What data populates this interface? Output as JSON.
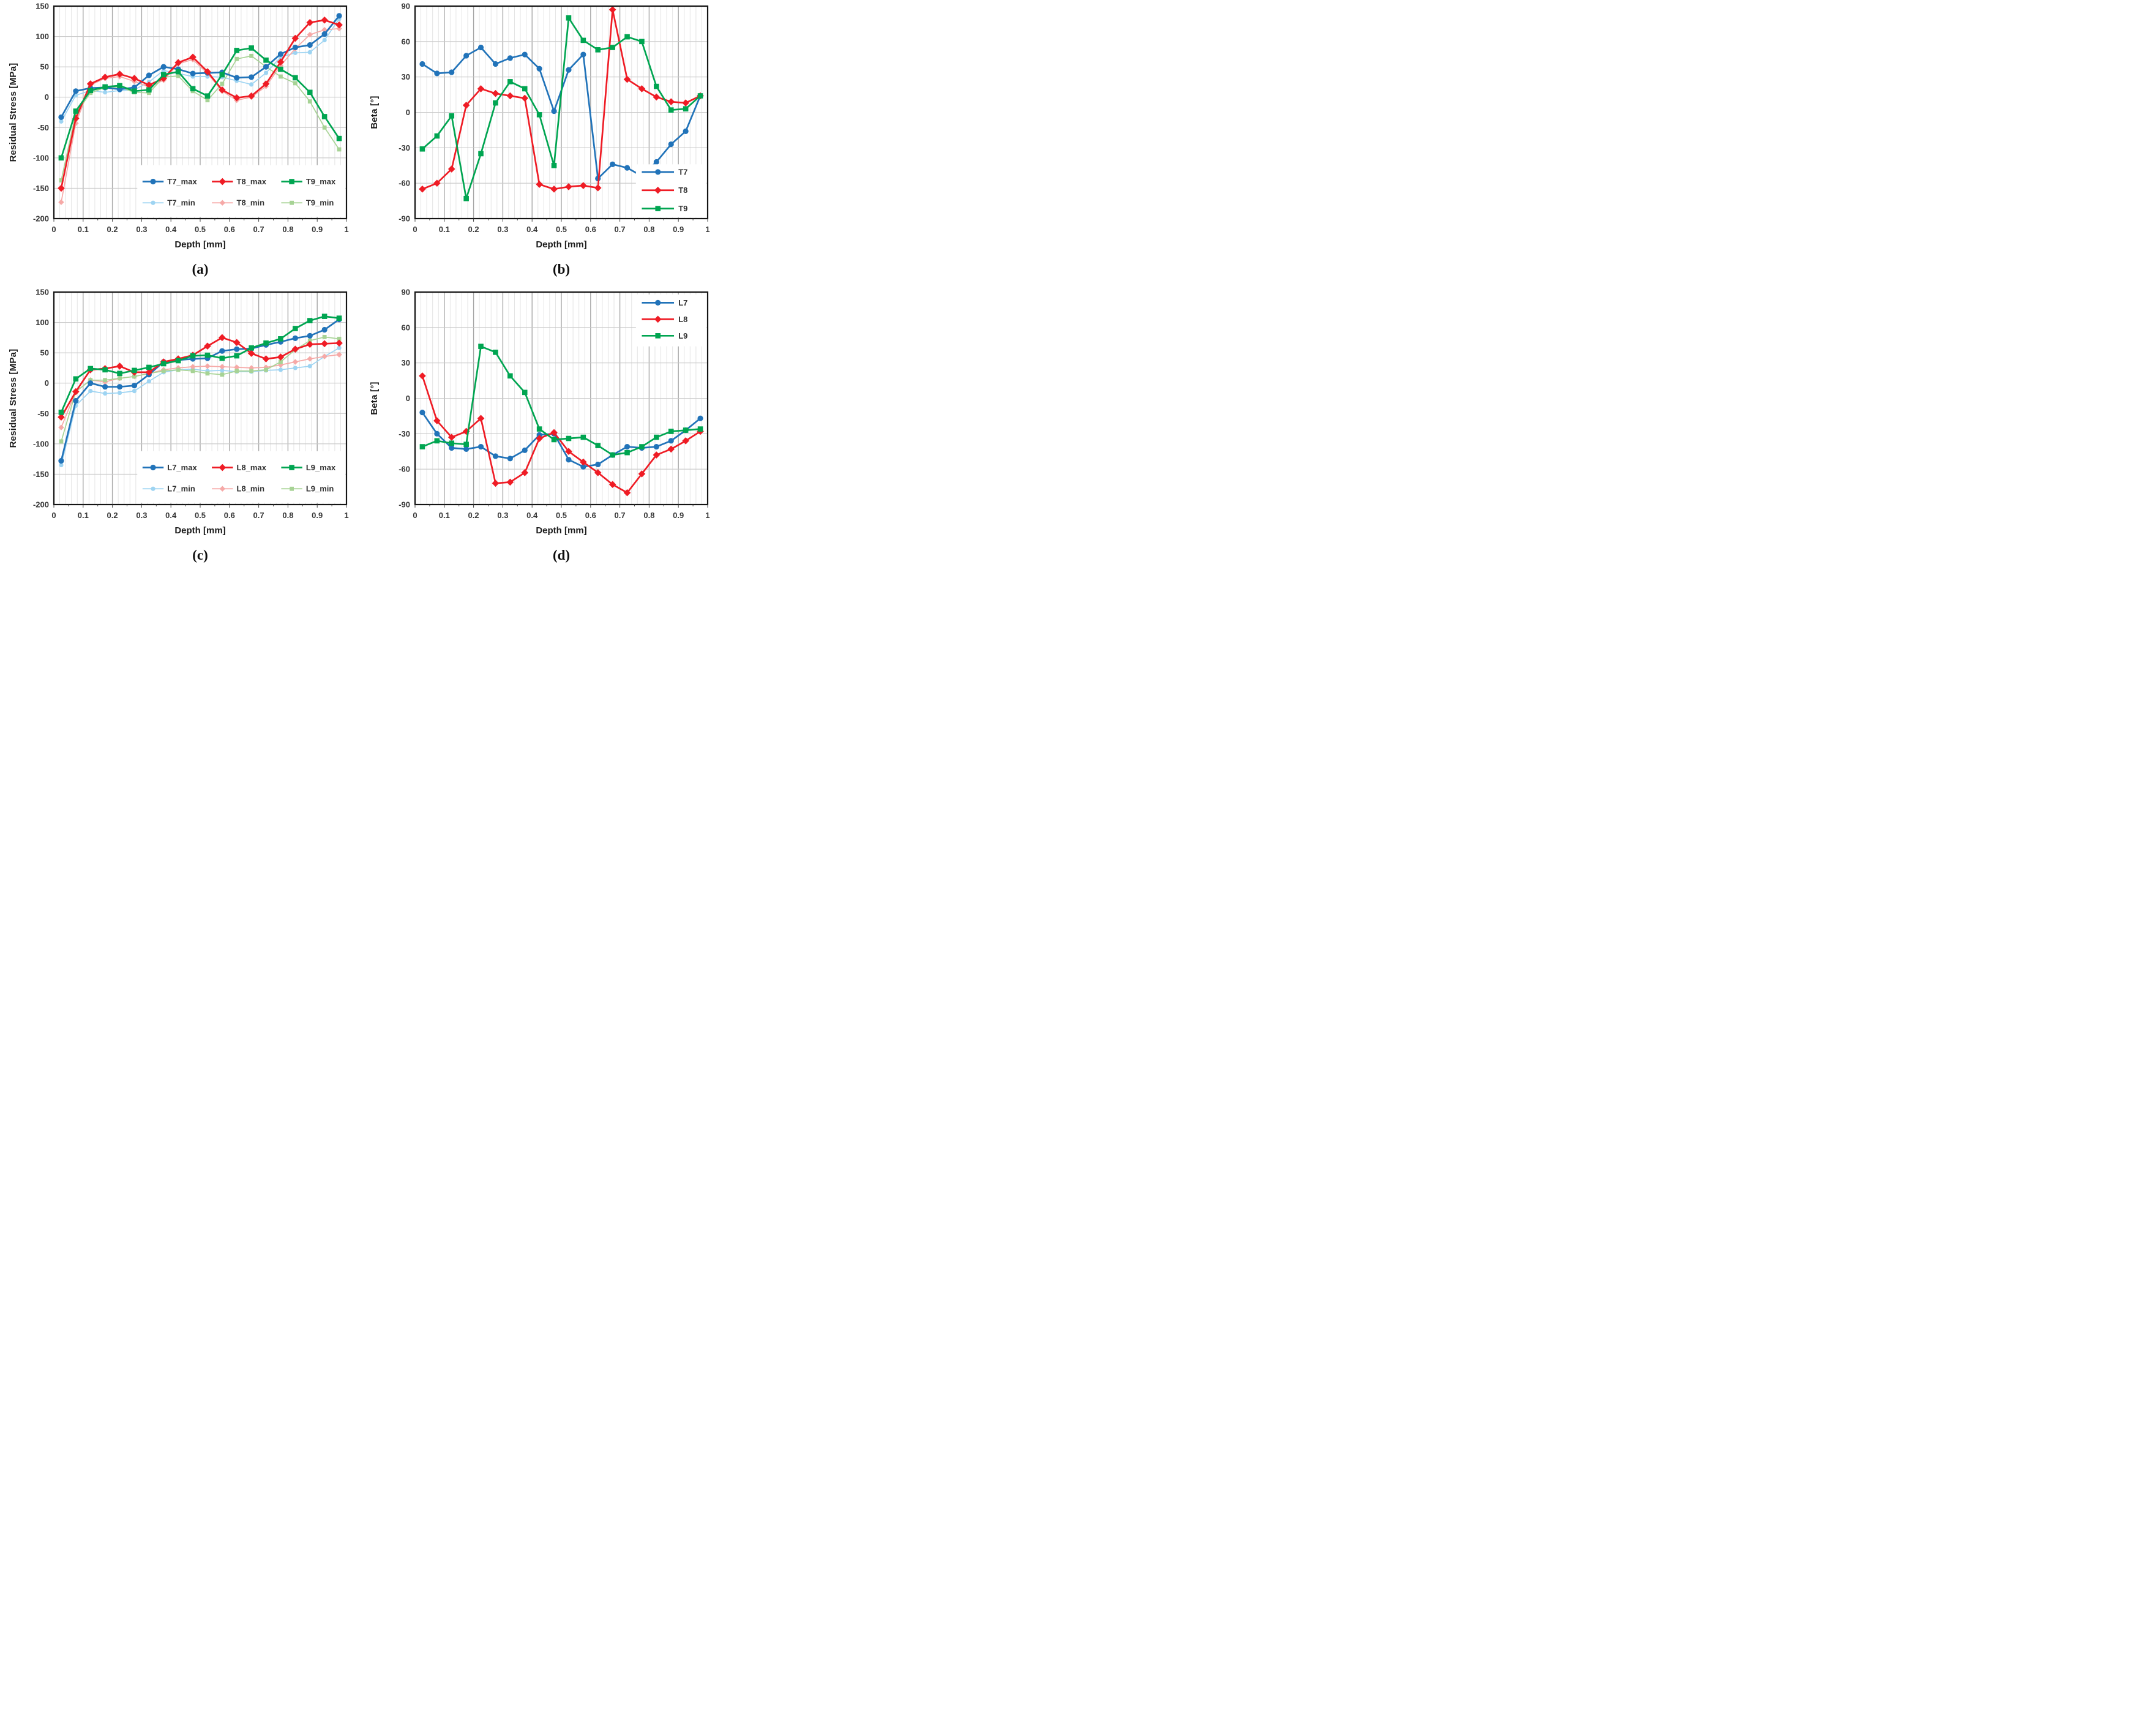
{
  "figure": {
    "description": "Four line charts of residual stress and beta angle versus depth",
    "x_points": [
      0.025,
      0.075,
      0.125,
      0.175,
      0.225,
      0.275,
      0.325,
      0.375,
      0.425,
      0.475,
      0.525,
      0.575,
      0.625,
      0.675,
      0.725,
      0.775,
      0.825,
      0.875,
      0.925,
      0.975
    ]
  },
  "chart_data": [
    {
      "id": "a",
      "type": "line",
      "caption": "(a)",
      "xlabel": "Depth [mm]",
      "ylabel": "Residual Stress [MPa]",
      "xlim": [
        0,
        1
      ],
      "ylim": [
        -200,
        150
      ],
      "ytick_step": 50,
      "yticks": [
        "150",
        "100",
        "50",
        "0",
        "-50",
        "-100",
        "-150",
        "-200"
      ],
      "xticks": [
        "0",
        "0.1",
        "0.2",
        "0.3",
        "0.4",
        "0.5",
        "0.6",
        "0.7",
        "0.8",
        "0.9",
        "1"
      ],
      "grid": "on",
      "legend_position": "inside-bottom",
      "x": [
        0.025,
        0.075,
        0.125,
        0.175,
        0.225,
        0.275,
        0.325,
        0.375,
        0.425,
        0.475,
        0.525,
        0.575,
        0.625,
        0.675,
        0.725,
        0.775,
        0.825,
        0.875,
        0.925,
        0.975
      ],
      "series": [
        {
          "name": "T7_max",
          "color": "#2173B9",
          "marker": "circle",
          "variant": "max",
          "values": [
            -33,
            10,
            15,
            16,
            13,
            16,
            36,
            50,
            46,
            39,
            40,
            41,
            32,
            33,
            50,
            71,
            82,
            86,
            104,
            134
          ]
        },
        {
          "name": "T8_max",
          "color": "#EF1C25",
          "marker": "diamond",
          "variant": "max",
          "values": [
            -150,
            -35,
            22,
            33,
            38,
            31,
            20,
            31,
            57,
            66,
            42,
            12,
            -1,
            2,
            22,
            58,
            97,
            123,
            127,
            119
          ]
        },
        {
          "name": "T9_max",
          "color": "#00A551",
          "marker": "square",
          "variant": "max",
          "values": [
            -100,
            -23,
            11,
            17,
            19,
            10,
            12,
            37,
            42,
            14,
            2,
            37,
            77,
            81,
            61,
            46,
            32,
            8,
            -32,
            -68
          ]
        },
        {
          "name": "T7_min",
          "color": "#9ED4F2",
          "marker": "circle",
          "variant": "min",
          "values": [
            -40,
            3,
            11,
            8,
            11,
            12,
            25,
            44,
            39,
            34,
            34,
            33,
            27,
            21,
            40,
            66,
            73,
            74,
            94,
            129
          ]
        },
        {
          "name": "T8_min",
          "color": "#F6A9A7",
          "marker": "diamond",
          "variant": "min",
          "values": [
            -173,
            -43,
            20,
            31,
            34,
            26,
            17,
            28,
            55,
            62,
            39,
            10,
            -5,
            0,
            18,
            52,
            80,
            103,
            111,
            113
          ]
        },
        {
          "name": "T9_min",
          "color": "#A7D395",
          "marker": "square",
          "variant": "min",
          "values": [
            -137,
            -27,
            7,
            16,
            17,
            8,
            7,
            33,
            35,
            10,
            -5,
            22,
            63,
            68,
            50,
            34,
            23,
            -7,
            -50,
            -86
          ]
        }
      ]
    },
    {
      "id": "b",
      "type": "line",
      "caption": "(b)",
      "xlabel": "Depth [mm]",
      "ylabel": "Beta [°]",
      "xlim": [
        0,
        1
      ],
      "ylim": [
        -90,
        90
      ],
      "ytick_step": 30,
      "yticks": [
        "90",
        "60",
        "30",
        "0",
        "-30",
        "-60",
        "-90"
      ],
      "xticks": [
        "0",
        "0.1",
        "0.2",
        "0.3",
        "0.4",
        "0.5",
        "0.6",
        "0.7",
        "0.8",
        "0.9",
        "1"
      ],
      "grid": "on",
      "legend_position": "inside-right",
      "x": [
        0.025,
        0.075,
        0.125,
        0.175,
        0.225,
        0.275,
        0.325,
        0.375,
        0.425,
        0.475,
        0.525,
        0.575,
        0.625,
        0.675,
        0.725,
        0.775,
        0.825,
        0.875,
        0.925,
        0.975
      ],
      "series": [
        {
          "name": "T7",
          "color": "#2173B9",
          "marker": "circle",
          "variant": "max",
          "values": [
            41,
            33,
            34,
            48,
            55,
            41,
            46,
            49,
            37,
            1,
            36,
            49,
            -56,
            -44,
            -47,
            -54,
            -42,
            -27,
            -16,
            14
          ]
        },
        {
          "name": "T8",
          "color": "#EF1C25",
          "marker": "diamond",
          "variant": "max",
          "values": [
            -65,
            -60,
            -48,
            6,
            20,
            16,
            14,
            12,
            -61,
            -65,
            -63,
            -62,
            -64,
            87,
            28,
            20,
            13,
            9,
            8,
            14
          ]
        },
        {
          "name": "T9",
          "color": "#00A551",
          "marker": "square",
          "variant": "max",
          "values": [
            -31,
            -20,
            -3,
            -73,
            -35,
            8,
            26,
            20,
            -2,
            -45,
            80,
            61,
            53,
            55,
            64,
            60,
            22,
            2,
            3,
            14
          ]
        }
      ]
    },
    {
      "id": "c",
      "type": "line",
      "caption": "(c)",
      "xlabel": "Depth [mm]",
      "ylabel": "Residual Stress [MPa]",
      "xlim": [
        0,
        1
      ],
      "ylim": [
        -200,
        150
      ],
      "ytick_step": 50,
      "yticks": [
        "150",
        "100",
        "50",
        "0",
        "-50",
        "-100",
        "-150",
        "-200"
      ],
      "xticks": [
        "0",
        "0.1",
        "0.2",
        "0.3",
        "0.4",
        "0.5",
        "0.6",
        "0.7",
        "0.8",
        "0.9",
        "1"
      ],
      "grid": "on",
      "legend_position": "inside-bottom",
      "x": [
        0.025,
        0.075,
        0.125,
        0.175,
        0.225,
        0.275,
        0.325,
        0.375,
        0.425,
        0.475,
        0.525,
        0.575,
        0.625,
        0.675,
        0.725,
        0.775,
        0.825,
        0.875,
        0.925,
        0.975
      ],
      "series": [
        {
          "name": "L7_max",
          "color": "#2173B9",
          "marker": "circle",
          "variant": "max",
          "values": [
            -128,
            -29,
            0,
            -6,
            -6,
            -4,
            14,
            35,
            38,
            40,
            41,
            53,
            56,
            57,
            63,
            68,
            74,
            78,
            88,
            105
          ]
        },
        {
          "name": "L8_max",
          "color": "#EF1C25",
          "marker": "diamond",
          "variant": "max",
          "values": [
            -56,
            -14,
            22,
            24,
            28,
            18,
            18,
            35,
            40,
            46,
            61,
            75,
            67,
            49,
            40,
            43,
            56,
            64,
            65,
            66
          ]
        },
        {
          "name": "L9_max",
          "color": "#00A551",
          "marker": "square",
          "variant": "max",
          "values": [
            -48,
            7,
            24,
            22,
            16,
            21,
            26,
            32,
            37,
            45,
            46,
            41,
            45,
            58,
            66,
            73,
            90,
            103,
            110,
            107
          ]
        },
        {
          "name": "L7_min",
          "color": "#9ED4F2",
          "marker": "circle",
          "variant": "min",
          "values": [
            -135,
            -37,
            -13,
            -17,
            -16,
            -13,
            3,
            18,
            22,
            23,
            20,
            21,
            19,
            19,
            21,
            22,
            25,
            28,
            44,
            58
          ]
        },
        {
          "name": "L8_min",
          "color": "#F6A9A7",
          "marker": "diamond",
          "variant": "min",
          "values": [
            -73,
            -14,
            5,
            2,
            8,
            11,
            16,
            22,
            25,
            27,
            28,
            27,
            26,
            25,
            26,
            30,
            35,
            40,
            44,
            47
          ]
        },
        {
          "name": "L9_min",
          "color": "#A7D395",
          "marker": "square",
          "variant": "min",
          "values": [
            -96,
            -14,
            5,
            5,
            8,
            11,
            16,
            20,
            22,
            20,
            16,
            14,
            20,
            20,
            22,
            35,
            55,
            70,
            76,
            73
          ]
        }
      ]
    },
    {
      "id": "d",
      "type": "line",
      "caption": "(d)",
      "xlabel": "Depth [mm]",
      "ylabel": "Beta [°]",
      "xlim": [
        0,
        1
      ],
      "ylim": [
        -90,
        90
      ],
      "ytick_step": 30,
      "yticks": [
        "90",
        "60",
        "30",
        "0",
        "-30",
        "-60",
        "-90"
      ],
      "xticks": [
        "0",
        "0.1",
        "0.2",
        "0.3",
        "0.4",
        "0.5",
        "0.6",
        "0.7",
        "0.8",
        "0.9",
        "1"
      ],
      "grid": "on",
      "legend_position": "inside-topright",
      "x": [
        0.025,
        0.075,
        0.125,
        0.175,
        0.225,
        0.275,
        0.325,
        0.375,
        0.425,
        0.475,
        0.525,
        0.575,
        0.625,
        0.675,
        0.725,
        0.775,
        0.825,
        0.875,
        0.925,
        0.975
      ],
      "series": [
        {
          "name": "L7",
          "color": "#2173B9",
          "marker": "circle",
          "variant": "max",
          "values": [
            -12,
            -30,
            -42,
            -43,
            -41,
            -49,
            -51,
            -44,
            -31,
            -30,
            -52,
            -58,
            -56,
            -48,
            -41,
            -42,
            -41,
            -36,
            -27,
            -17
          ]
        },
        {
          "name": "L8",
          "color": "#EF1C25",
          "marker": "diamond",
          "variant": "max",
          "values": [
            19,
            -19,
            -33,
            -28,
            -17,
            -72,
            -71,
            -63,
            -34,
            -29,
            -45,
            -54,
            -63,
            -73,
            -80,
            -64,
            -48,
            -43,
            -36,
            -28
          ]
        },
        {
          "name": "L9",
          "color": "#00A551",
          "marker": "square",
          "variant": "max",
          "values": [
            -41,
            -36,
            -38,
            -39,
            44,
            39,
            19,
            5,
            -26,
            -35,
            -34,
            -33,
            -40,
            -48,
            -46,
            -41,
            -33,
            -28,
            -27,
            -26
          ]
        }
      ]
    }
  ]
}
